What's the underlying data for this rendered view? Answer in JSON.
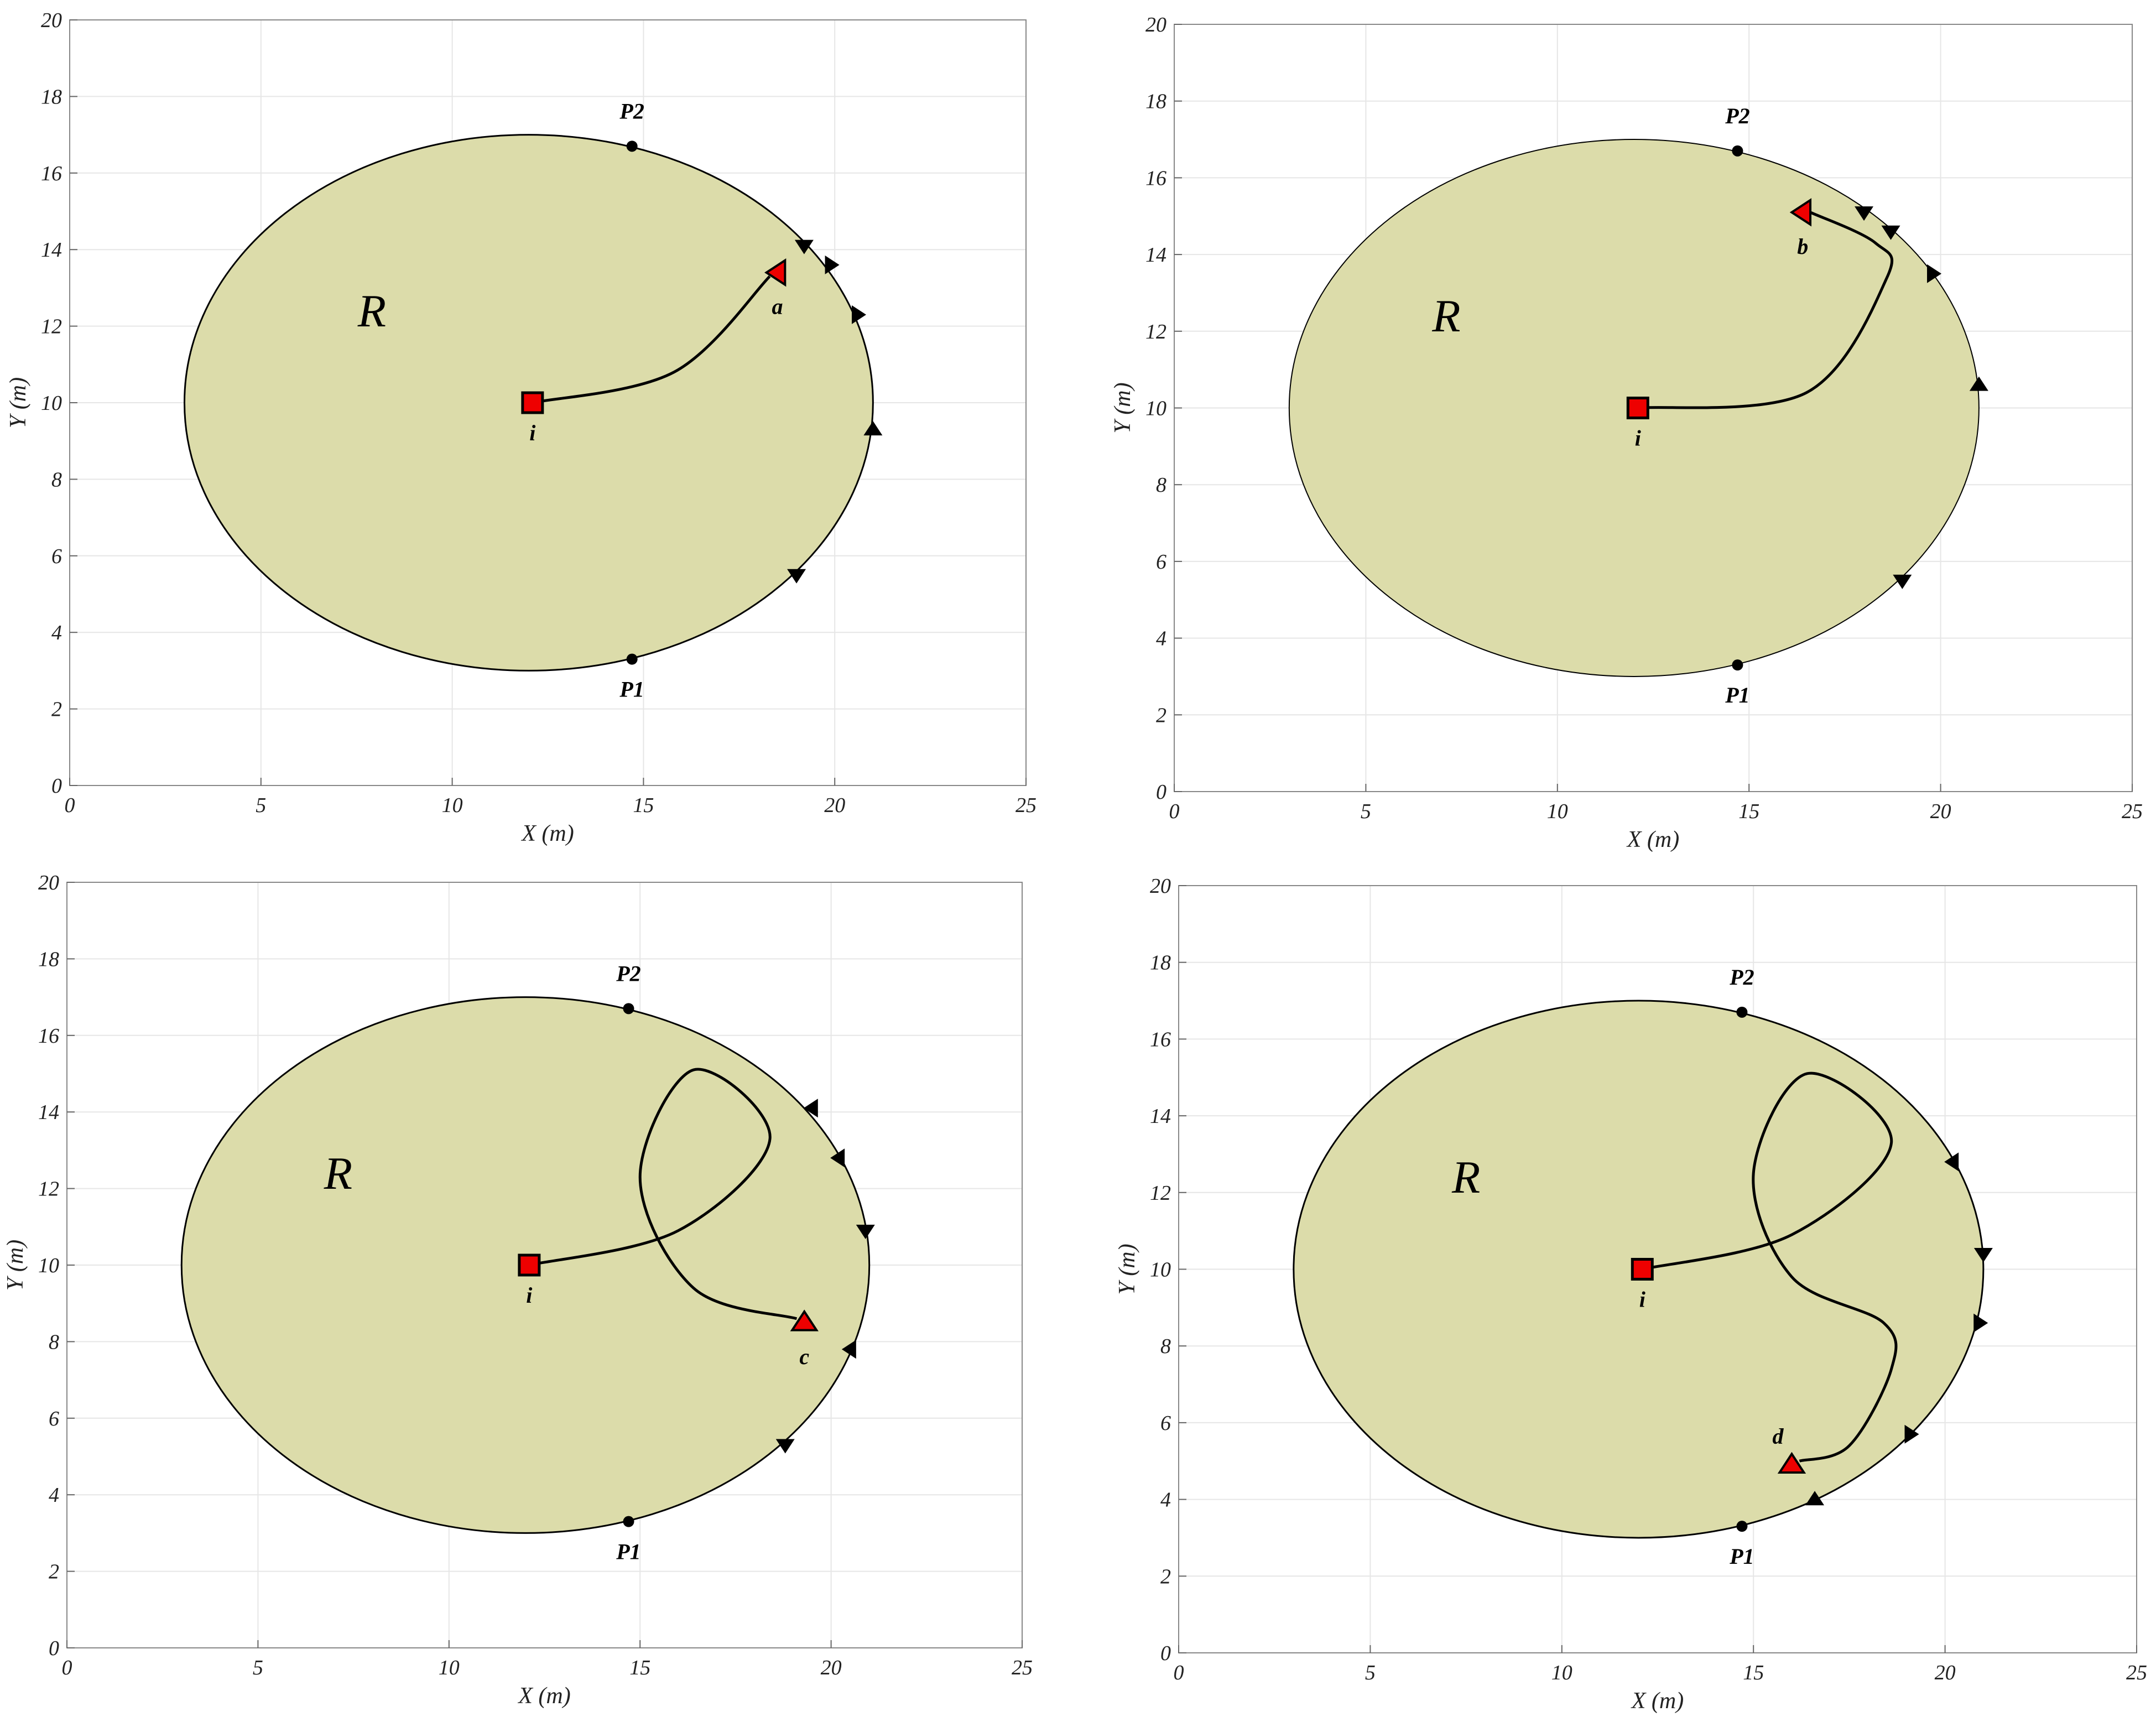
{
  "chart_data": [
    {
      "type": "scatter",
      "title": "",
      "xlabel": "X (m)",
      "ylabel": "Y (m)",
      "xlim": [
        0,
        25
      ],
      "ylim": [
        0,
        20
      ],
      "xticks": [
        "0",
        "5",
        "10",
        "15",
        "20",
        "25"
      ],
      "yticks": [
        "0",
        "2",
        "4",
        "6",
        "8",
        "10",
        "12",
        "14",
        "16",
        "18",
        "20"
      ],
      "grid": true,
      "region": {
        "label": "R",
        "label_xy": [
          7.9,
          12.4
        ],
        "center": [
          12,
          10
        ],
        "rx": 9,
        "ry": 7,
        "fill": "#dcdcaa"
      },
      "points": [
        {
          "name": "P2",
          "x": 14.7,
          "y": 16.7
        },
        {
          "name": "P1",
          "x": 14.7,
          "y": 3.3
        }
      ],
      "start": {
        "label": "i",
        "x": 12.1,
        "y": 10
      },
      "target": {
        "label": "a",
        "x": 18.5,
        "y": 13.4,
        "dir": "left"
      },
      "path": [
        [
          12.1,
          10
        ],
        [
          15.8,
          10.8
        ],
        [
          18.3,
          13.3
        ]
      ],
      "markers": [
        {
          "x": 19.2,
          "y": 14.1,
          "dir": "down"
        },
        {
          "x": 19.9,
          "y": 13.6,
          "dir": "right"
        },
        {
          "x": 20.6,
          "y": 12.3,
          "dir": "right"
        },
        {
          "x": 21.0,
          "y": 9.3,
          "dir": "up"
        },
        {
          "x": 19.0,
          "y": 5.5,
          "dir": "down"
        }
      ]
    },
    {
      "type": "scatter",
      "title": "",
      "xlabel": "X (m)",
      "ylabel": "Y (m)",
      "xlim": [
        0,
        25
      ],
      "ylim": [
        0,
        20
      ],
      "xticks": [
        "0",
        "5",
        "10",
        "15",
        "20",
        "25"
      ],
      "yticks": [
        "0",
        "2",
        "4",
        "6",
        "8",
        "10",
        "12",
        "14",
        "16",
        "18",
        "20"
      ],
      "grid": true,
      "region": {
        "label": "R",
        "label_xy": [
          7.1,
          12.4
        ],
        "center": [
          12,
          10
        ],
        "rx": 9,
        "ry": 7,
        "fill": "#dcdcaa"
      },
      "points": [
        {
          "name": "P2",
          "x": 14.7,
          "y": 16.7
        },
        {
          "name": "P1",
          "x": 14.7,
          "y": 3.3
        }
      ],
      "start": {
        "label": "i",
        "x": 12.1,
        "y": 10
      },
      "target": {
        "label": "b",
        "x": 16.4,
        "y": 15.1,
        "dir": "left"
      },
      "path": [
        [
          12.1,
          10
        ],
        [
          16.5,
          10.4
        ],
        [
          18.6,
          13.4
        ],
        [
          18.3,
          14.3
        ],
        [
          16.6,
          15.1
        ]
      ],
      "markers": [
        {
          "x": 18.0,
          "y": 15.1,
          "dir": "down"
        },
        {
          "x": 18.7,
          "y": 14.6,
          "dir": "down"
        },
        {
          "x": 19.8,
          "y": 13.5,
          "dir": "right"
        },
        {
          "x": 21.0,
          "y": 10.6,
          "dir": "up"
        },
        {
          "x": 19.0,
          "y": 5.5,
          "dir": "down"
        }
      ]
    },
    {
      "type": "scatter",
      "title": "",
      "xlabel": "X (m)",
      "ylabel": "Y (m)",
      "xlim": [
        0,
        25
      ],
      "ylim": [
        0,
        20
      ],
      "xticks": [
        "0",
        "5",
        "10",
        "15",
        "20",
        "25"
      ],
      "yticks": [
        "0",
        "2",
        "4",
        "6",
        "8",
        "10",
        "12",
        "14",
        "16",
        "18",
        "20"
      ],
      "grid": true,
      "region": {
        "label": "R",
        "label_xy": [
          7.1,
          12.4
        ],
        "center": [
          12,
          10
        ],
        "rx": 9,
        "ry": 7,
        "fill": "#dcdcaa"
      },
      "points": [
        {
          "name": "P2",
          "x": 14.7,
          "y": 16.7
        },
        {
          "name": "P1",
          "x": 14.7,
          "y": 3.3
        }
      ],
      "start": {
        "label": "i",
        "x": 12.1,
        "y": 10
      },
      "target": {
        "label": "c",
        "x": 19.3,
        "y": 8.5,
        "dir": "up"
      },
      "path": [
        [
          12.1,
          10
        ],
        [
          16.0,
          10.9
        ],
        [
          18.4,
          13.3
        ],
        [
          16.4,
          15.1
        ],
        [
          15.0,
          12.3
        ],
        [
          16.4,
          9.4
        ],
        [
          19.1,
          8.6
        ]
      ],
      "markers": [
        {
          "x": 19.5,
          "y": 14.1,
          "dir": "left"
        },
        {
          "x": 20.2,
          "y": 12.8,
          "dir": "left"
        },
        {
          "x": 20.9,
          "y": 10.9,
          "dir": "down"
        },
        {
          "x": 20.5,
          "y": 7.8,
          "dir": "left"
        },
        {
          "x": 18.8,
          "y": 5.3,
          "dir": "down"
        }
      ]
    },
    {
      "type": "scatter",
      "title": "",
      "xlabel": "X (m)",
      "ylabel": "Y (m)",
      "xlim": [
        0,
        25
      ],
      "ylim": [
        0,
        20
      ],
      "xticks": [
        "0",
        "5",
        "10",
        "15",
        "20",
        "25"
      ],
      "yticks": [
        "0",
        "2",
        "4",
        "6",
        "8",
        "10",
        "12",
        "14",
        "16",
        "18",
        "20"
      ],
      "grid": true,
      "region": {
        "label": "R",
        "label_xy": [
          7.5,
          12.4
        ],
        "center": [
          12,
          10
        ],
        "rx": 9,
        "ry": 7,
        "fill": "#dcdcaa"
      },
      "points": [
        {
          "name": "P2",
          "x": 14.7,
          "y": 16.7
        },
        {
          "name": "P1",
          "x": 14.7,
          "y": 3.3
        }
      ],
      "start": {
        "label": "i",
        "x": 12.1,
        "y": 10
      },
      "target": {
        "label": "d",
        "x": 16.0,
        "y": 4.9,
        "dir": "up"
      },
      "path": [
        [
          12.1,
          10
        ],
        [
          16.0,
          10.9
        ],
        [
          18.6,
          13.3
        ],
        [
          16.4,
          15.1
        ],
        [
          15.0,
          12.5
        ],
        [
          16.0,
          9.8
        ],
        [
          18.4,
          8.6
        ],
        [
          18.6,
          7.4
        ],
        [
          17.5,
          5.4
        ],
        [
          16.2,
          5.0
        ]
      ],
      "markers": [
        {
          "x": 20.2,
          "y": 12.8,
          "dir": "left"
        },
        {
          "x": 21.0,
          "y": 10.4,
          "dir": "down"
        },
        {
          "x": 20.9,
          "y": 8.6,
          "dir": "right"
        },
        {
          "x": 19.1,
          "y": 5.7,
          "dir": "right"
        },
        {
          "x": 16.6,
          "y": 4.0,
          "dir": "up"
        }
      ]
    }
  ]
}
